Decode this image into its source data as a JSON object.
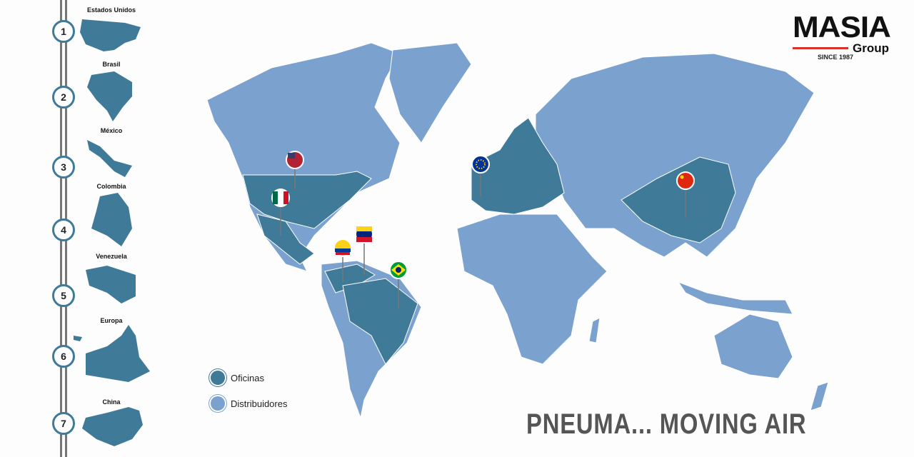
{
  "countries": [
    {
      "n": "1",
      "label": "Estados Unidos"
    },
    {
      "n": "2",
      "label": "Brasil"
    },
    {
      "n": "3",
      "label": "México"
    },
    {
      "n": "4",
      "label": "Colombia"
    },
    {
      "n": "5",
      "label": "Venezuela"
    },
    {
      "n": "6",
      "label": "Europa"
    },
    {
      "n": "7",
      "label": "China"
    }
  ],
  "logo": {
    "name": "MASIA",
    "sub": "Group",
    "since": "SINCE 1987"
  },
  "legend": {
    "offices": "Oficinas",
    "distributors": "Distribuidores"
  },
  "slogan": "PNEUMA... MOVING AIR",
  "colors": {
    "offices": "#3f7a99",
    "distributors": "#7ba1cf",
    "accent": "#d8322b"
  }
}
